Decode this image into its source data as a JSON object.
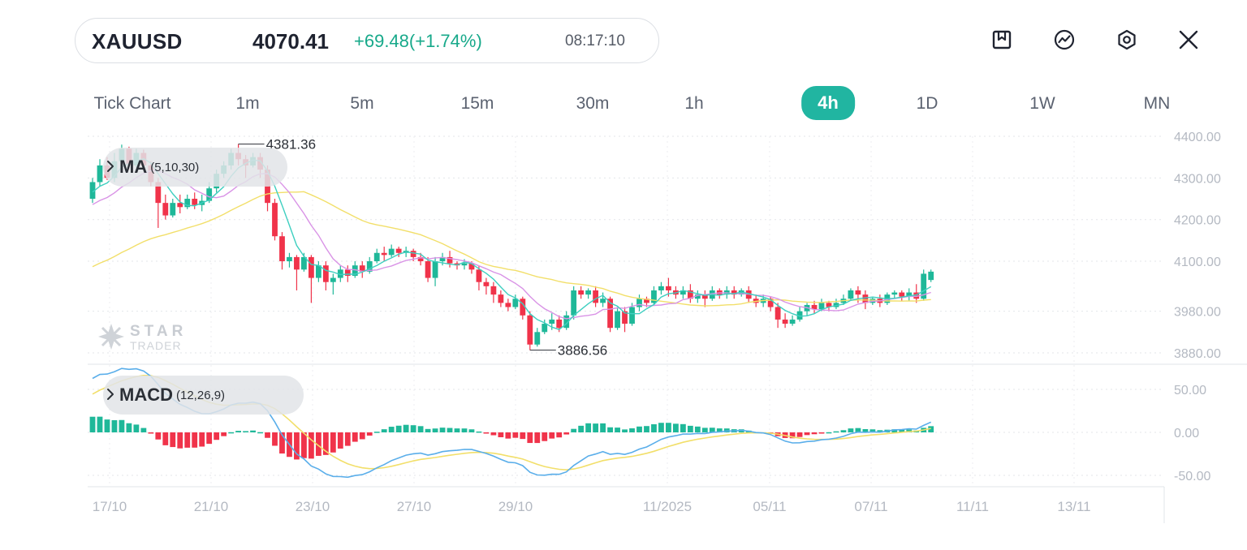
{
  "header": {
    "symbol": "XAUUSD",
    "price": "4070.41",
    "change": "+69.48(+1.74%)",
    "time": "08:17:10"
  },
  "toolbar": {
    "icons": [
      "bookmark-icon",
      "indicator-icon",
      "settings-icon",
      "close-icon"
    ]
  },
  "timeframes": [
    {
      "label": "Tick Chart",
      "active": false
    },
    {
      "label": "1m",
      "active": false
    },
    {
      "label": "5m",
      "active": false
    },
    {
      "label": "15m",
      "active": false
    },
    {
      "label": "30m",
      "active": false
    },
    {
      "label": "1h",
      "active": false
    },
    {
      "label": "4h",
      "active": true
    },
    {
      "label": "1D",
      "active": false
    },
    {
      "label": "1W",
      "active": false
    },
    {
      "label": "MN",
      "active": false
    }
  ],
  "indicators": {
    "ma": {
      "name": "MA",
      "params": "(5,10,30)"
    },
    "macd": {
      "name": "MACD",
      "params": "(12,26,9)"
    }
  },
  "watermark": {
    "top": "STAR",
    "bottom": "TRADER"
  },
  "colors": {
    "up": "#1fb899",
    "down": "#f0334a",
    "accent": "#21b5a1",
    "ma5": "#3ecfc0",
    "ma10": "#d993e6",
    "ma30": "#f2df6a",
    "dif": "#5aaeea",
    "dea": "#f2df6a"
  },
  "chart_data": {
    "type": "candlestick",
    "price_axis_labels": [
      "4400.00",
      "4300.00",
      "4200.00",
      "4100.00",
      "3980.00",
      "3880.00"
    ],
    "macd_axis_labels": [
      "50.00",
      "0.00",
      "-50.00"
    ],
    "x_labels": [
      "17/10",
      "21/10",
      "23/10",
      "27/10",
      "29/10",
      "11/2025",
      "05/11",
      "07/11",
      "11/11",
      "13/11"
    ],
    "high_annotation": "4381.36",
    "low_annotation": "3886.56",
    "candles": [
      [
        4250,
        4290,
        4240,
        4300
      ],
      [
        4290,
        4330,
        4280,
        4345
      ],
      [
        4330,
        4300,
        4295,
        4350
      ],
      [
        4300,
        4340,
        4290,
        4360
      ],
      [
        4340,
        4370,
        4330,
        4380
      ],
      [
        4370,
        4330,
        4320,
        4375
      ],
      [
        4330,
        4360,
        4325,
        4370
      ],
      [
        4360,
        4330,
        4320,
        4368
      ],
      [
        4330,
        4290,
        4280,
        4340
      ],
      [
        4290,
        4240,
        4180,
        4300
      ],
      [
        4240,
        4210,
        4200,
        4260
      ],
      [
        4210,
        4240,
        4205,
        4250
      ],
      [
        4240,
        4230,
        4215,
        4260
      ],
      [
        4230,
        4250,
        4225,
        4260
      ],
      [
        4250,
        4235,
        4225,
        4265
      ],
      [
        4235,
        4245,
        4220,
        4260
      ],
      [
        4245,
        4275,
        4240,
        4290
      ],
      [
        4275,
        4310,
        4265,
        4320
      ],
      [
        4310,
        4330,
        4300,
        4340
      ],
      [
        4330,
        4360,
        4320,
        4370
      ],
      [
        4360,
        4345,
        4330,
        4381.36
      ],
      [
        4345,
        4330,
        4300,
        4355
      ],
      [
        4330,
        4350,
        4325,
        4360
      ],
      [
        4350,
        4320,
        4300,
        4360
      ],
      [
        4320,
        4240,
        4220,
        4330
      ],
      [
        4240,
        4160,
        4150,
        4250
      ],
      [
        4160,
        4100,
        4080,
        4170
      ],
      [
        4100,
        4110,
        4085,
        4120
      ],
      [
        4110,
        4080,
        4030,
        4115
      ],
      [
        4080,
        4110,
        4075,
        4120
      ],
      [
        4110,
        4060,
        4000,
        4115
      ],
      [
        4060,
        4090,
        4050,
        4100
      ],
      [
        4090,
        4050,
        4030,
        4100
      ],
      [
        4050,
        4060,
        4020,
        4070
      ],
      [
        4060,
        4080,
        4050,
        4090
      ],
      [
        4080,
        4065,
        4050,
        4090
      ],
      [
        4065,
        4090,
        4060,
        4100
      ],
      [
        4090,
        4075,
        4060,
        4100
      ],
      [
        4075,
        4100,
        4070,
        4110
      ],
      [
        4100,
        4120,
        4095,
        4130
      ],
      [
        4120,
        4115,
        4100,
        4135
      ],
      [
        4115,
        4130,
        4110,
        4140
      ],
      [
        4130,
        4120,
        4110,
        4135
      ],
      [
        4120,
        4125,
        4110,
        4135
      ],
      [
        4125,
        4110,
        4100,
        4130
      ],
      [
        4110,
        4100,
        4090,
        4120
      ],
      [
        4100,
        4060,
        4050,
        4110
      ],
      [
        4060,
        4100,
        4040,
        4110
      ],
      [
        4100,
        4110,
        4090,
        4120
      ],
      [
        4110,
        4095,
        4085,
        4125
      ],
      [
        4095,
        4090,
        4080,
        4100
      ],
      [
        4090,
        4095,
        4080,
        4105
      ],
      [
        4095,
        4080,
        4070,
        4100
      ],
      [
        4080,
        4050,
        4030,
        4090
      ],
      [
        4050,
        4040,
        4020,
        4060
      ],
      [
        4040,
        4020,
        4000,
        4050
      ],
      [
        4020,
        4000,
        3990,
        4030
      ],
      [
        4000,
        3990,
        3980,
        4010
      ],
      [
        3990,
        4010,
        3985,
        4020
      ],
      [
        4010,
        3970,
        3960,
        4015
      ],
      [
        3970,
        3900,
        3886.56,
        3980
      ],
      [
        3900,
        3930,
        3895,
        3940
      ],
      [
        3930,
        3950,
        3925,
        3960
      ],
      [
        3950,
        3960,
        3935,
        3975
      ],
      [
        3960,
        3940,
        3930,
        3970
      ],
      [
        3940,
        3970,
        3935,
        3980
      ],
      [
        3970,
        4030,
        3960,
        4040
      ],
      [
        4030,
        4020,
        4010,
        4040
      ],
      [
        4020,
        4030,
        4010,
        4035
      ],
      [
        4030,
        4000,
        3990,
        4040
      ],
      [
        4000,
        4010,
        3990,
        4025
      ],
      [
        4010,
        3940,
        3930,
        4015
      ],
      [
        3940,
        3980,
        3935,
        3990
      ],
      [
        3980,
        3950,
        3930,
        3990
      ],
      [
        3950,
        3990,
        3945,
        4000
      ],
      [
        3990,
        4010,
        3980,
        4020
      ],
      [
        4010,
        4000,
        3990,
        4015
      ],
      [
        4000,
        4030,
        3995,
        4040
      ],
      [
        4030,
        4040,
        4020,
        4050
      ],
      [
        4040,
        4030,
        4015,
        4060
      ],
      [
        4030,
        4020,
        4010,
        4040
      ],
      [
        4020,
        4030,
        4010,
        4040
      ],
      [
        4030,
        4010,
        4000,
        4045
      ],
      [
        4010,
        4020,
        4000,
        4030
      ],
      [
        4020,
        4010,
        3990,
        4030
      ],
      [
        4010,
        4030,
        4005,
        4040
      ],
      [
        4030,
        4020,
        4010,
        4035
      ],
      [
        4020,
        4030,
        4010,
        4040
      ],
      [
        4030,
        4020,
        4010,
        4040
      ],
      [
        4020,
        4030,
        4015,
        4035
      ],
      [
        4030,
        4010,
        4000,
        4040
      ],
      [
        4010,
        4000,
        3990,
        4020
      ],
      [
        4000,
        4010,
        3990,
        4020
      ],
      [
        4010,
        3990,
        3980,
        4015
      ],
      [
        3990,
        3960,
        3940,
        4000
      ],
      [
        3960,
        3950,
        3940,
        3975
      ],
      [
        3950,
        3960,
        3945,
        3970
      ],
      [
        3960,
        3980,
        3955,
        3990
      ],
      [
        3980,
        3995,
        3970,
        4000
      ],
      [
        3995,
        3985,
        3975,
        4005
      ],
      [
        3985,
        4000,
        3980,
        4010
      ],
      [
        4000,
        3990,
        3980,
        4005
      ],
      [
        3990,
        4000,
        3985,
        4010
      ],
      [
        4000,
        4010,
        3995,
        4020
      ],
      [
        4010,
        4030,
        4005,
        4035
      ],
      [
        4030,
        4020,
        4000,
        4040
      ],
      [
        4020,
        4000,
        3985,
        4030
      ],
      [
        4000,
        4010,
        3995,
        4015
      ],
      [
        4010,
        4000,
        3990,
        4020
      ],
      [
        4000,
        4020,
        3995,
        4025
      ],
      [
        4020,
        4025,
        4010,
        4030
      ],
      [
        4025,
        4015,
        4005,
        4030
      ],
      [
        4015,
        4025,
        4005,
        4035
      ],
      [
        4025,
        4010,
        4000,
        4045
      ],
      [
        4010,
        4070,
        4005,
        4080
      ],
      [
        4055,
        4075,
        4050,
        4080
      ]
    ]
  }
}
